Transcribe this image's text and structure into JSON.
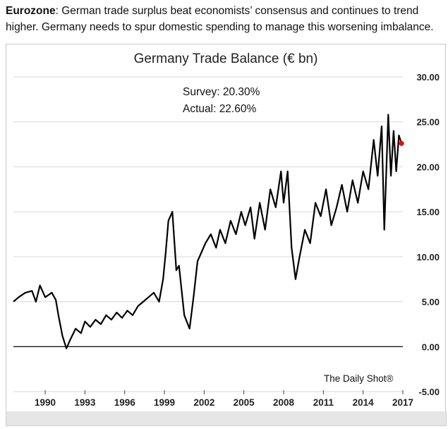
{
  "caption": {
    "lead": "Eurozone",
    "text": ": German trade surplus beat economists’ consensus and continues to trend higher. Germany needs to spur domestic spending to manage this worsening imbalance."
  },
  "chart_data": {
    "type": "line",
    "title": "Germany Trade Balance (€ bn)",
    "annotations": [
      "Survey: 20.30%",
      "Actual:  22.60%"
    ],
    "source": "The Daily Shot®",
    "xlabel": "",
    "ylabel": "",
    "x_ticks": [
      "1990",
      "1993",
      "1996",
      "1999",
      "2002",
      "2005",
      "2008",
      "2011",
      "2014",
      "2017"
    ],
    "y_ticks": [
      "-5.00",
      "0.00",
      "5.00",
      "10.00",
      "15.00",
      "20.00",
      "25.00",
      "30.00"
    ],
    "xlim": [
      1987.6,
      2017.0
    ],
    "ylim": [
      -5,
      30
    ],
    "y_axis_side": "right",
    "grid": "horizontal",
    "highlight_point": {
      "x": 2016.9,
      "y": 22.6,
      "color": "#ff0000"
    },
    "line_color": "#000000",
    "series": [
      {
        "x": [
          1987.6,
          1988.0,
          1988.5,
          1989.0,
          1989.3,
          1989.6,
          1990.0,
          1990.5,
          1990.8,
          1991.0,
          1991.3,
          1991.6,
          1991.9,
          1992.3,
          1992.7,
          1993.0,
          1993.4,
          1993.8,
          1994.2,
          1994.6,
          1995.0,
          1995.4,
          1995.8,
          1996.2,
          1996.6,
          1997.0,
          1997.4,
          1997.8,
          1998.2,
          1998.6,
          1998.9,
          1999.1,
          1999.3,
          1999.6,
          1999.9,
          2000.1,
          2000.5,
          2000.9,
          2001.2,
          2001.5,
          2001.8,
          2002.1,
          2002.5,
          2002.9,
          2003.2,
          2003.6,
          2004.0,
          2004.4,
          2004.8,
          2005.1,
          2005.5,
          2005.8,
          2006.2,
          2006.6,
          2007.0,
          2007.4,
          2007.8,
          2008.0,
          2008.3,
          2008.6,
          2008.9,
          2009.2,
          2009.6,
          2010.0,
          2010.4,
          2010.8,
          2011.2,
          2011.6,
          2012.0,
          2012.4,
          2012.8,
          2013.2,
          2013.6,
          2014.0,
          2014.4,
          2014.8,
          2015.1,
          2015.4,
          2015.6,
          2015.9,
          2016.1,
          2016.3,
          2016.5,
          2016.7,
          2016.9
        ],
        "y": [
          5.0,
          5.5,
          6.0,
          6.2,
          5.0,
          6.8,
          5.5,
          6.0,
          5.2,
          3.5,
          1.2,
          -0.2,
          0.8,
          2.0,
          1.5,
          2.8,
          2.2,
          3.0,
          2.5,
          3.5,
          3.0,
          3.8,
          3.2,
          4.0,
          3.5,
          4.5,
          5.0,
          5.5,
          6.0,
          5.0,
          7.5,
          10.5,
          14.0,
          15.0,
          8.5,
          9.0,
          3.5,
          2.0,
          5.5,
          9.5,
          10.5,
          11.5,
          12.5,
          11.0,
          13.0,
          11.5,
          14.0,
          12.5,
          15.0,
          13.5,
          15.5,
          12.0,
          16.0,
          13.0,
          17.5,
          15.5,
          19.5,
          16.0,
          19.5,
          11.0,
          7.5,
          10.0,
          13.0,
          11.5,
          16.0,
          14.5,
          17.5,
          13.5,
          15.5,
          18.0,
          15.0,
          18.5,
          16.0,
          19.5,
          17.5,
          23.0,
          19.0,
          24.5,
          13.0,
          25.8,
          19.0,
          24.0,
          19.5,
          23.5,
          22.6
        ]
      }
    ]
  }
}
